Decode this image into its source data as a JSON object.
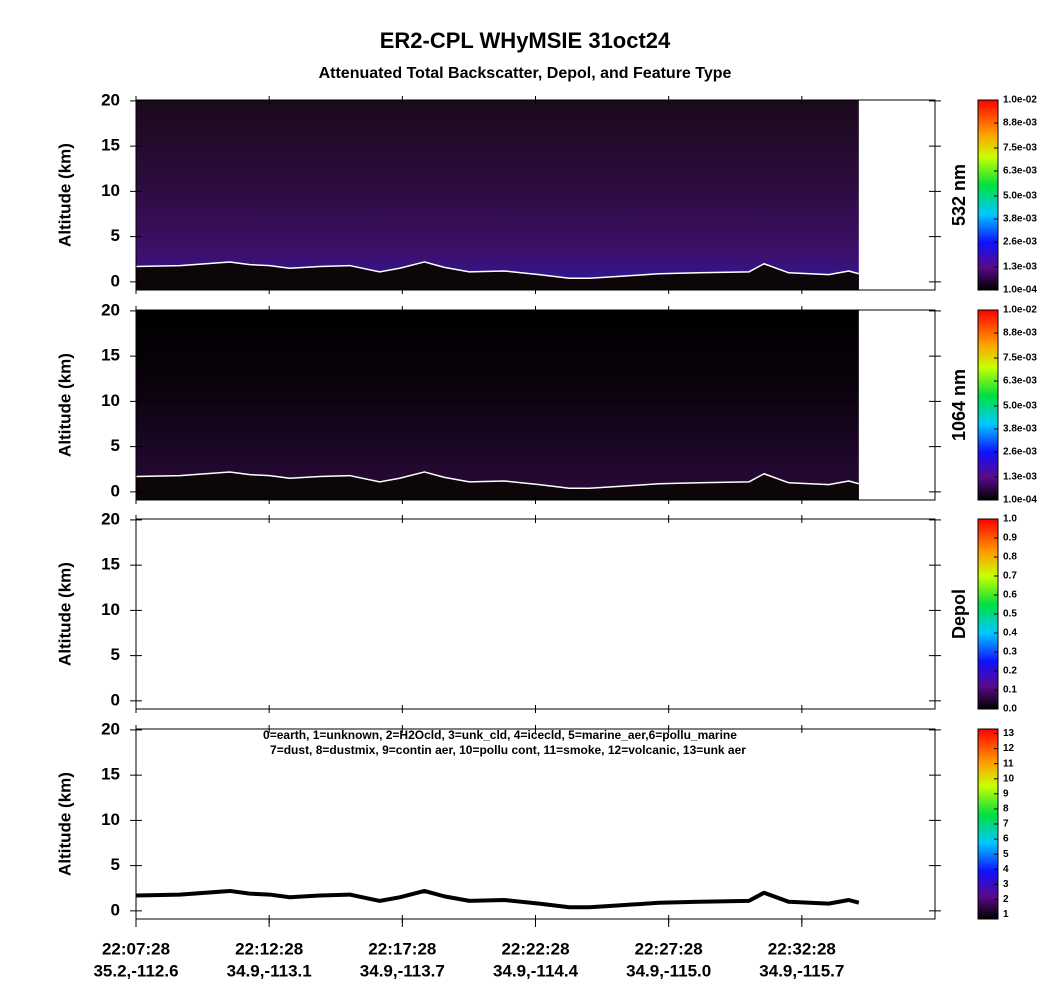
{
  "chart_data": {
    "type": "lidar-curtain",
    "title": "ER2-CPL  WHyMSIE  31oct24",
    "subtitle": "Attenuated Total Backscatter, Depol, and Feature Type",
    "xlim": [
      0,
      30
    ],
    "xticks": [
      {
        "value": 0,
        "label": "22:07:28"
      },
      {
        "value": 5,
        "label": "22:12:28"
      },
      {
        "value": 10,
        "label": "22:17:28"
      },
      {
        "value": 15,
        "label": "22:22:28"
      },
      {
        "value": 20,
        "label": "22:27:28"
      },
      {
        "value": 25,
        "label": "22:32:28"
      }
    ],
    "xtick_locations": [
      "35.2,-112.6",
      "34.9,-113.1",
      "34.9,-113.7",
      "34.9,-114.4",
      "34.9,-115.0",
      "34.9,-115.7"
    ],
    "ground": {
      "x": [
        0,
        1.65,
        3.52,
        4.27,
        5.02,
        5.77,
        6.9,
        8.02,
        9.15,
        9.9,
        10.83,
        11.58,
        12.52,
        13.83,
        15.14,
        16.27,
        17.02,
        18.14,
        19.64,
        21.14,
        23.01,
        23.58,
        24.51,
        26.01,
        26.76,
        27.14
      ],
      "altitude": [
        1.7,
        1.8,
        2.2,
        1.9,
        1.8,
        1.5,
        1.7,
        1.8,
        1.1,
        1.5,
        2.2,
        1.6,
        1.1,
        1.2,
        0.8,
        0.4,
        0.4,
        0.6,
        0.9,
        1.0,
        1.1,
        2.0,
        1.0,
        0.8,
        1.2,
        0.9
      ]
    },
    "feature_legend": [
      "0=earth, 1=unknown, 2=H2Ocld, 3=unk_cld, 4=icecld, 5=marine_aer,6=pollu_marine",
      "7=dust, 8=dustmix, 9=contin  aer, 10=pollu  cont, 11=smoke, 12=volcanic, 13=unk  aer"
    ],
    "panels": [
      {
        "ylabel": "Altitude (km)",
        "ylim": [
          -0.9,
          20.1
        ],
        "yticks": [
          0,
          5,
          10,
          15,
          20
        ],
        "colorbar_label": "532 nm",
        "clim": [
          0.0001,
          0.01
        ],
        "cticks": [
          {
            "value": 0.0001,
            "label": "1.0e-04"
          },
          {
            "value": 0.0013,
            "label": "1.3e-03"
          },
          {
            "value": 0.0026,
            "label": "2.6e-03"
          },
          {
            "value": 0.0038,
            "label": "3.8e-03"
          },
          {
            "value": 0.005,
            "label": "5.0e-03"
          },
          {
            "value": 0.0063,
            "label": "6.3e-03"
          },
          {
            "value": 0.0075,
            "label": "7.5e-03"
          },
          {
            "value": 0.0088,
            "label": "8.8e-03"
          },
          {
            "value": 0.01,
            "label": "1.0e-02"
          }
        ],
        "ground_color": "#ffffff"
      },
      {
        "ylabel": "Altitude (km)",
        "ylim": [
          -0.9,
          20.1
        ],
        "yticks": [
          0,
          5,
          10,
          15,
          20
        ],
        "colorbar_label": "1064 nm",
        "clim": [
          0.0001,
          0.01
        ],
        "cticks": [
          {
            "value": 0.0001,
            "label": "1.0e-04"
          },
          {
            "value": 0.0013,
            "label": "1.3e-03"
          },
          {
            "value": 0.0026,
            "label": "2.6e-03"
          },
          {
            "value": 0.0038,
            "label": "3.8e-03"
          },
          {
            "value": 0.005,
            "label": "5.0e-03"
          },
          {
            "value": 0.0063,
            "label": "6.3e-03"
          },
          {
            "value": 0.0075,
            "label": "7.5e-03"
          },
          {
            "value": 0.0088,
            "label": "8.8e-03"
          },
          {
            "value": 0.01,
            "label": "1.0e-02"
          }
        ],
        "ground_color": "#ffffff"
      },
      {
        "ylabel": "Altitude (km)",
        "ylim": [
          -0.9,
          20.1
        ],
        "yticks": [
          0,
          5,
          10,
          15,
          20
        ],
        "colorbar_label": "Depol",
        "clim": [
          0,
          1
        ],
        "cticks": [
          {
            "value": 0,
            "label": "0.0"
          },
          0.1,
          0.2,
          0.3,
          0.4,
          0.5,
          0.6,
          0.7,
          0.8,
          0.9,
          {
            "value": 1,
            "label": "1.0"
          }
        ]
      },
      {
        "ylabel": "Altitude (km)",
        "ylim": [
          -0.9,
          20.1
        ],
        "yticks": [
          0,
          5,
          10,
          15,
          20
        ],
        "clim": [
          0.7,
          13.3
        ],
        "cticks": [
          1,
          2,
          3,
          4,
          5,
          6,
          7,
          8,
          9,
          10,
          11,
          12,
          13
        ],
        "ground_color": "#000000"
      }
    ]
  }
}
